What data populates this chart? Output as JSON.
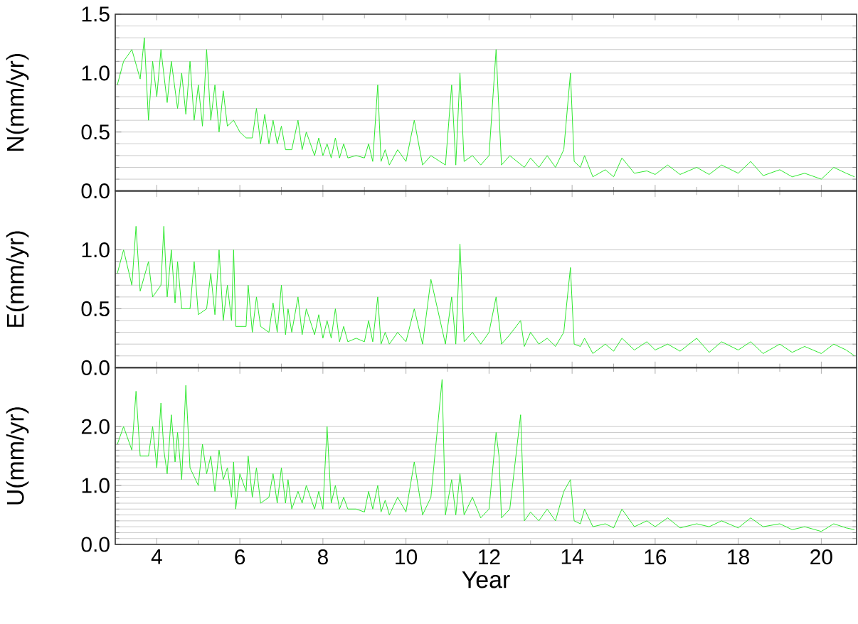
{
  "chart_data": [
    {
      "type": "line",
      "ylabel": "N(mm/yr)",
      "color": "#2ee82e",
      "grid": "y",
      "tick_labels": "y",
      "xlim": [
        3.0,
        20.85
      ],
      "xticks": [
        4,
        6,
        8,
        10,
        12,
        14,
        16,
        18,
        20
      ],
      "ylim": [
        0,
        1.5
      ],
      "yticks": [
        {
          "value": 0,
          "label": "0.0"
        },
        {
          "value": 0.5,
          "label": "0.5"
        },
        {
          "value": 1.0,
          "label": "1.0"
        },
        {
          "value": 1.5,
          "label": "1.5"
        }
      ],
      "x": [
        3.05,
        3.1,
        3.2,
        3.3,
        3.4,
        3.5,
        3.6,
        3.7,
        3.8,
        3.9,
        4.0,
        4.1,
        4.17,
        4.25,
        4.35,
        4.44,
        4.5,
        4.6,
        4.7,
        4.8,
        4.9,
        5.0,
        5.1,
        5.2,
        5.3,
        5.4,
        5.5,
        5.6,
        5.7,
        5.8,
        5.85,
        5.9,
        6.0,
        6.1,
        6.15,
        6.2,
        6.3,
        6.4,
        6.5,
        6.6,
        6.7,
        6.8,
        6.9,
        7.0,
        7.1,
        7.16,
        7.25,
        7.4,
        7.5,
        7.6,
        7.74,
        7.8,
        7.9,
        8.0,
        8.1,
        8.2,
        8.3,
        8.4,
        8.5,
        8.6,
        8.74,
        8.8,
        8.94,
        9.0,
        9.1,
        9.2,
        9.32,
        9.4,
        9.5,
        9.6,
        9.8,
        10.0,
        10.2,
        10.4,
        10.6,
        10.87,
        10.95,
        11.1,
        11.2,
        11.3,
        11.4,
        11.6,
        11.8,
        12.0,
        12.17,
        12.24,
        12.3,
        12.5,
        12.76,
        12.85,
        13.0,
        13.2,
        13.4,
        13.6,
        13.8,
        13.96,
        14.05,
        14.2,
        14.3,
        14.5,
        14.8,
        15.0,
        15.2,
        15.5,
        15.8,
        16.0,
        16.3,
        16.6,
        17.0,
        17.3,
        17.6,
        18.0,
        18.3,
        18.6,
        19.0,
        19.3,
        19.6,
        20.0,
        20.3,
        20.6,
        20.8
      ],
      "values": [
        0.9,
        null,
        1.1,
        null,
        1.2,
        null,
        0.95,
        1.3,
        0.6,
        1.1,
        0.8,
        1.2,
        null,
        0.75,
        1.1,
        null,
        0.7,
        1.0,
        0.65,
        1.1,
        0.6,
        0.9,
        0.55,
        1.2,
        0.6,
        0.9,
        0.5,
        0.85,
        0.55,
        null,
        0.6,
        null,
        0.5,
        null,
        0.45,
        null,
        0.45,
        0.7,
        0.4,
        0.65,
        0.4,
        0.6,
        0.4,
        0.55,
        0.35,
        null,
        0.35,
        0.6,
        0.35,
        0.5,
        null,
        0.3,
        0.45,
        0.3,
        0.4,
        0.28,
        0.45,
        0.28,
        0.4,
        0.28,
        null,
        0.3,
        null,
        0.28,
        0.4,
        0.25,
        0.9,
        0.25,
        0.35,
        0.22,
        0.35,
        0.25,
        0.6,
        0.22,
        0.3,
        null,
        0.22,
        0.9,
        0.22,
        1.0,
        0.25,
        0.3,
        0.22,
        0.3,
        1.2,
        null,
        0.22,
        0.3,
        null,
        0.2,
        0.28,
        0.2,
        0.3,
        0.2,
        0.35,
        1.0,
        0.25,
        0.2,
        0.3,
        0.12,
        0.18,
        0.12,
        0.28,
        0.15,
        0.17,
        0.14,
        0.22,
        0.14,
        0.2,
        0.14,
        0.22,
        0.15,
        0.25,
        0.13,
        0.18,
        0.12,
        0.15,
        0.1,
        0.2,
        0.15,
        0.12
      ]
    },
    {
      "type": "line",
      "ylabel": "E(mm/yr)",
      "color": "#2ee82e",
      "grid": "y",
      "tick_labels": "y",
      "xlim": [
        3.0,
        20.85
      ],
      "xticks": [
        4,
        6,
        8,
        10,
        12,
        14,
        16,
        18,
        20
      ],
      "ylim": [
        0,
        1.5
      ],
      "yticks": [
        {
          "value": 0,
          "label": "0.0"
        },
        {
          "value": 0.5,
          "label": "0.5"
        },
        {
          "value": 1.0,
          "label": "1.0"
        }
      ],
      "x": [
        3.05,
        3.1,
        3.2,
        3.3,
        3.4,
        3.5,
        3.6,
        3.7,
        3.8,
        3.9,
        4.0,
        4.1,
        4.17,
        4.25,
        4.35,
        4.44,
        4.5,
        4.6,
        4.7,
        4.8,
        4.9,
        5.0,
        5.1,
        5.2,
        5.3,
        5.4,
        5.5,
        5.6,
        5.7,
        5.8,
        5.85,
        5.9,
        6.0,
        6.1,
        6.15,
        6.2,
        6.3,
        6.4,
        6.5,
        6.6,
        6.7,
        6.8,
        6.9,
        7.0,
        7.1,
        7.16,
        7.25,
        7.4,
        7.5,
        7.6,
        7.74,
        7.8,
        7.9,
        8.0,
        8.1,
        8.2,
        8.3,
        8.4,
        8.5,
        8.6,
        8.74,
        8.8,
        8.94,
        9.0,
        9.1,
        9.2,
        9.32,
        9.4,
        9.5,
        9.6,
        9.8,
        10.0,
        10.2,
        10.4,
        10.6,
        10.87,
        10.95,
        11.1,
        11.2,
        11.3,
        11.4,
        11.6,
        11.8,
        12.0,
        12.17,
        12.24,
        12.3,
        12.5,
        12.76,
        12.85,
        13.0,
        13.2,
        13.4,
        13.6,
        13.8,
        13.96,
        14.05,
        14.2,
        14.3,
        14.5,
        14.8,
        15.0,
        15.2,
        15.5,
        15.8,
        16.0,
        16.3,
        16.6,
        17.0,
        17.3,
        17.6,
        18.0,
        18.3,
        18.6,
        19.0,
        19.3,
        19.6,
        20.0,
        20.3,
        20.6,
        20.8
      ],
      "values": [
        0.8,
        null,
        1.0,
        null,
        0.7,
        1.2,
        0.65,
        null,
        0.9,
        0.6,
        null,
        0.7,
        1.2,
        0.6,
        1.0,
        0.55,
        0.9,
        0.5,
        null,
        0.5,
        0.9,
        0.45,
        null,
        0.5,
        0.8,
        0.45,
        1.0,
        0.4,
        0.7,
        0.4,
        1.0,
        0.35,
        null,
        null,
        0.35,
        0.7,
        0.3,
        0.6,
        0.35,
        null,
        0.3,
        0.55,
        0.3,
        0.7,
        0.28,
        0.5,
        0.3,
        0.6,
        0.28,
        0.5,
        null,
        0.28,
        0.45,
        0.25,
        0.4,
        0.25,
        0.5,
        0.22,
        0.35,
        0.22,
        null,
        0.25,
        null,
        0.22,
        0.4,
        0.22,
        0.6,
        0.2,
        0.3,
        0.2,
        0.3,
        0.22,
        0.5,
        0.2,
        0.75,
        null,
        0.2,
        0.6,
        0.2,
        1.05,
        0.22,
        0.3,
        0.2,
        0.3,
        0.6,
        null,
        0.2,
        0.28,
        0.4,
        0.18,
        0.3,
        0.2,
        0.25,
        0.18,
        0.3,
        0.85,
        0.2,
        0.18,
        0.25,
        0.12,
        0.2,
        0.14,
        0.25,
        0.15,
        0.22,
        0.15,
        0.2,
        0.14,
        0.25,
        0.13,
        0.22,
        0.15,
        0.22,
        0.12,
        0.2,
        0.13,
        0.18,
        0.12,
        0.2,
        0.15,
        0.1
      ]
    },
    {
      "type": "line",
      "ylabel": "U(mm/yr)",
      "xlabel": "Year",
      "color": "#2ee82e",
      "grid": "y",
      "xlim": [
        3.0,
        20.85
      ],
      "xticks": [
        4,
        6,
        8,
        10,
        12,
        14,
        16,
        18,
        20
      ],
      "ylim": [
        0,
        3.0
      ],
      "yticks": [
        {
          "value": 0,
          "label": "0.0"
        },
        {
          "value": 1.0,
          "label": "1.0"
        },
        {
          "value": 2.0,
          "label": "2.0"
        }
      ],
      "x": [
        3.05,
        3.1,
        3.2,
        3.3,
        3.4,
        3.5,
        3.6,
        3.7,
        3.8,
        3.9,
        4.0,
        4.1,
        4.17,
        4.25,
        4.35,
        4.44,
        4.5,
        4.6,
        4.7,
        4.8,
        4.9,
        5.0,
        5.1,
        5.2,
        5.3,
        5.4,
        5.5,
        5.6,
        5.7,
        5.8,
        5.85,
        5.9,
        6.0,
        6.1,
        6.15,
        6.2,
        6.3,
        6.4,
        6.5,
        6.6,
        6.7,
        6.8,
        6.9,
        7.0,
        7.1,
        7.16,
        7.25,
        7.4,
        7.5,
        7.6,
        7.74,
        7.8,
        7.9,
        8.0,
        8.1,
        8.2,
        8.3,
        8.4,
        8.5,
        8.6,
        8.74,
        8.8,
        8.94,
        9.0,
        9.1,
        9.2,
        9.32,
        9.4,
        9.5,
        9.6,
        9.8,
        10.0,
        10.2,
        10.4,
        10.6,
        10.87,
        10.95,
        11.1,
        11.2,
        11.3,
        11.4,
        11.6,
        11.8,
        12.0,
        12.17,
        12.24,
        12.3,
        12.5,
        12.76,
        12.85,
        13.0,
        13.2,
        13.4,
        13.6,
        13.8,
        13.96,
        14.05,
        14.2,
        14.3,
        14.5,
        14.8,
        15.0,
        15.2,
        15.5,
        15.8,
        16.0,
        16.3,
        16.6,
        17.0,
        17.3,
        17.6,
        18.0,
        18.3,
        18.6,
        19.0,
        19.3,
        19.6,
        20.0,
        20.3,
        20.6,
        20.8
      ],
      "values": [
        1.7,
        null,
        2.0,
        null,
        1.6,
        2.6,
        1.5,
        null,
        1.5,
        2.0,
        1.3,
        2.4,
        1.6,
        1.2,
        2.2,
        1.4,
        1.9,
        1.1,
        2.7,
        1.3,
        null,
        1.0,
        1.7,
        1.2,
        1.5,
        0.9,
        1.6,
        1.1,
        1.3,
        0.8,
        1.4,
        0.6,
        1.2,
        null,
        0.9,
        1.5,
        0.8,
        1.3,
        0.7,
        null,
        0.8,
        1.2,
        0.7,
        1.3,
        0.7,
        1.1,
        0.6,
        0.9,
        0.7,
        1.0,
        null,
        0.6,
        0.9,
        0.6,
        2.0,
        0.7,
        1.0,
        0.6,
        0.8,
        0.6,
        null,
        0.6,
        null,
        0.55,
        0.9,
        0.6,
        1.0,
        0.55,
        0.75,
        0.5,
        0.8,
        0.55,
        1.4,
        0.5,
        0.8,
        2.8,
        0.5,
        1.1,
        0.5,
        1.2,
        0.5,
        0.8,
        0.45,
        0.6,
        1.9,
        1.5,
        0.45,
        0.6,
        2.2,
        0.4,
        0.55,
        0.4,
        0.6,
        0.4,
        0.9,
        1.1,
        0.4,
        0.35,
        0.6,
        0.3,
        0.35,
        0.28,
        0.6,
        0.3,
        0.4,
        0.3,
        0.45,
        0.28,
        0.35,
        0.3,
        0.4,
        0.28,
        0.45,
        0.3,
        0.35,
        0.25,
        0.3,
        0.22,
        0.35,
        0.28,
        0.25
      ]
    }
  ]
}
